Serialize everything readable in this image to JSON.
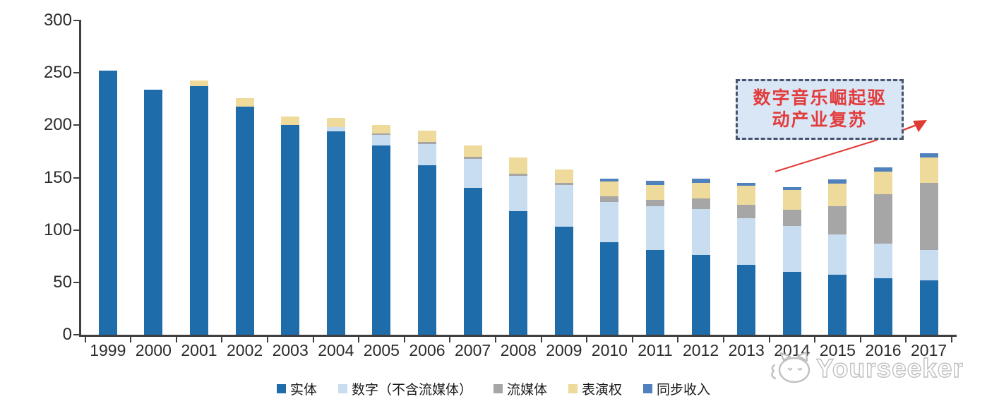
{
  "watermark": {
    "brand": "Yourseeker",
    "logo": "cat-doodle-icon"
  },
  "annotation": {
    "line1": "数字音乐崛起驱",
    "line2": "动产业复苏",
    "text_color": "#e23c3c",
    "box_fill": "#d9e6f5",
    "border_color": "#46536e",
    "arrow_color": "#e03a34"
  },
  "axes": {
    "y_tick_labels": [
      "0",
      "50",
      "100",
      "150",
      "200",
      "250",
      "300"
    ]
  },
  "chart_data": {
    "type": "bar",
    "stacked": true,
    "title": "",
    "xlabel": "",
    "ylabel": "",
    "ylim": [
      0,
      300
    ],
    "yticks": [
      0,
      50,
      100,
      150,
      200,
      250,
      300
    ],
    "grid": false,
    "legend_position": "bottom",
    "categories": [
      "1999",
      "2000",
      "2001",
      "2002",
      "2003",
      "2004",
      "2005",
      "2006",
      "2007",
      "2008",
      "2009",
      "2010",
      "2011",
      "2012",
      "2013",
      "2014",
      "2015",
      "2016",
      "2017"
    ],
    "series": [
      {
        "id": "physical",
        "name": "实体",
        "color": "#1f6cab",
        "values": [
          252,
          234,
          237,
          218,
          200,
          194,
          181,
          162,
          140,
          118,
          103,
          88,
          81,
          76,
          67,
          60,
          57,
          54,
          52
        ]
      },
      {
        "id": "digital-excl-streaming",
        "name": "数字（不含流媒体）",
        "color": "#c9ddf1",
        "values": [
          0,
          0,
          0,
          0,
          0,
          4,
          10,
          20,
          28,
          34,
          40,
          39,
          42,
          44,
          44,
          44,
          39,
          33,
          29
        ]
      },
      {
        "id": "streaming",
        "name": "流媒体",
        "color": "#a6a6a6",
        "values": [
          0,
          0,
          0,
          0,
          0,
          0,
          1,
          2,
          2,
          2,
          2,
          5,
          6,
          10,
          13,
          15,
          27,
          47,
          64
        ]
      },
      {
        "id": "performance-rights",
        "name": "表演权",
        "color": "#eeda9a",
        "values": [
          0,
          0,
          6,
          8,
          8,
          9,
          8,
          11,
          11,
          15,
          13,
          14,
          14,
          15,
          18,
          19,
          21,
          22,
          24
        ]
      },
      {
        "id": "sync-income",
        "name": "同步收入",
        "color": "#4f81bd",
        "values": [
          0,
          0,
          0,
          0,
          0,
          0,
          0,
          0,
          0,
          0,
          0,
          3,
          4,
          4,
          3,
          3,
          4,
          4,
          4
        ]
      }
    ]
  }
}
